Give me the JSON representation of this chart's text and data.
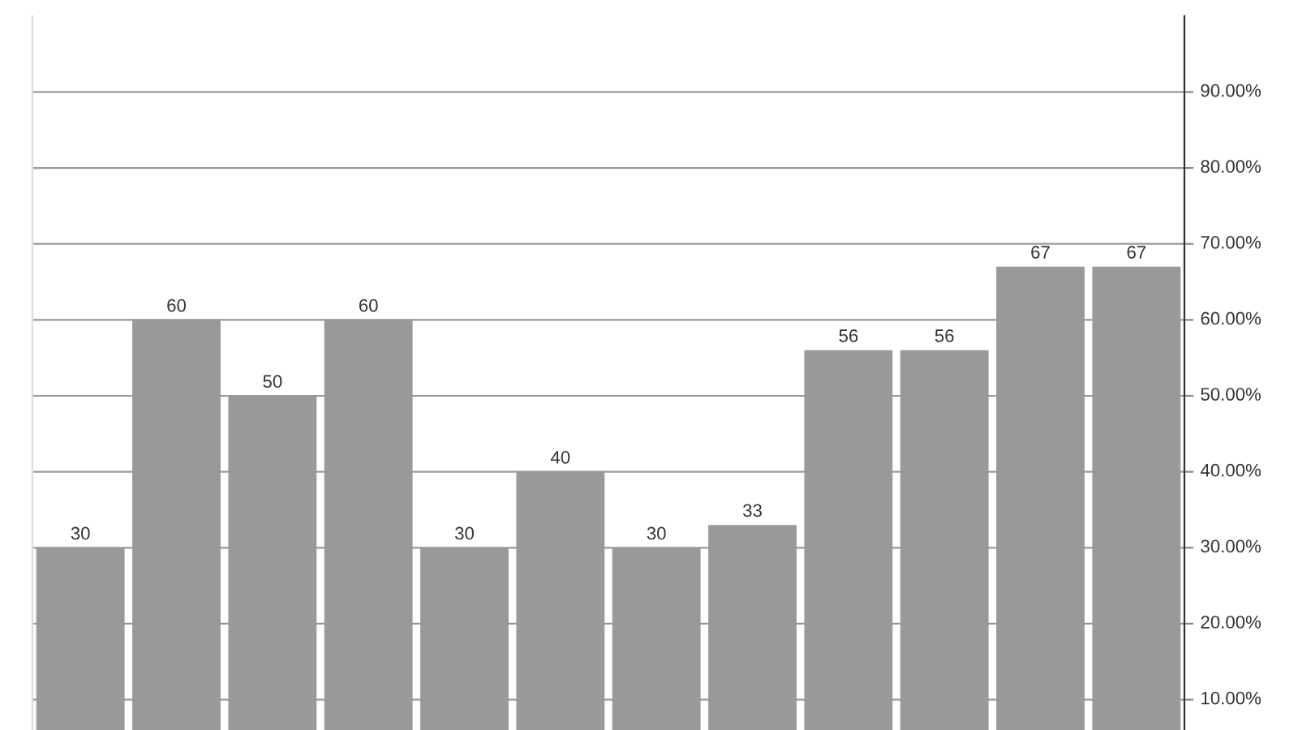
{
  "chart_data": {
    "type": "bar",
    "categories": [
      null,
      null,
      null,
      null,
      null,
      null,
      null,
      null,
      null,
      null,
      null,
      null
    ],
    "values": [
      30,
      60,
      50,
      60,
      30,
      40,
      30,
      33,
      56,
      56,
      67,
      67
    ],
    "color": "#999999",
    "data_labels": true,
    "ylim": [
      6,
      100
    ],
    "yticks": [
      {
        "value": 10,
        "label": "10.00%"
      },
      {
        "value": 20,
        "label": "20.00%"
      },
      {
        "value": 30,
        "label": "30.00%"
      },
      {
        "value": 40,
        "label": "40.00%"
      },
      {
        "value": 50,
        "label": "50.00%"
      },
      {
        "value": 60,
        "label": "60.00%"
      },
      {
        "value": 70,
        "label": "70.00%"
      },
      {
        "value": 80,
        "label": "80.00%"
      },
      {
        "value": 90,
        "label": "90.00%"
      }
    ],
    "grid": "y"
  }
}
